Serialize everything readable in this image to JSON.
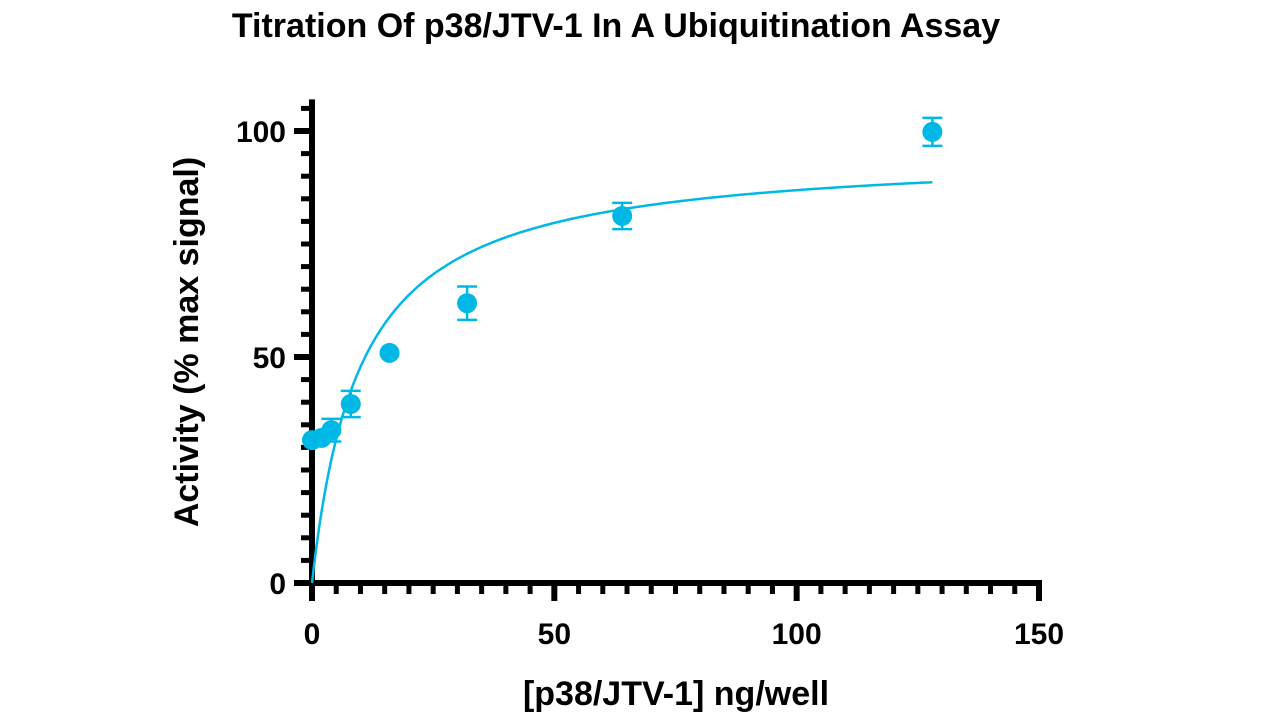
{
  "chart_data": {
    "type": "scatter",
    "title": "Titration Of p38/JTV-1 In A Ubiquitination Assay",
    "xlabel": "[p38/JTV-1] ng/well",
    "ylabel": "Activity (% max signal)",
    "xlim": [
      0,
      150
    ],
    "ylim": [
      0,
      107
    ],
    "xticks": [
      0,
      50,
      100,
      150
    ],
    "yticks": [
      0,
      50,
      100
    ],
    "xtick_labels": [
      "0",
      "50",
      "100",
      "150"
    ],
    "ytick_labels": [
      "0",
      "50",
      "100"
    ],
    "minor_tick_step": 5,
    "grid": false,
    "color": "#00b8e6",
    "points": {
      "x": [
        0,
        2,
        4,
        8,
        16,
        32,
        64,
        128
      ],
      "y": [
        31.6,
        32.1,
        33.8,
        39.6,
        50.9,
        61.9,
        81.2,
        99.8
      ],
      "error": [
        0,
        0,
        2.5,
        2.9,
        0,
        3.7,
        2.9,
        3.1
      ]
    },
    "fit": {
      "model": "hyperbola",
      "Bmax": 95.6,
      "Kd": 10,
      "x_range": [
        0,
        128
      ]
    }
  }
}
